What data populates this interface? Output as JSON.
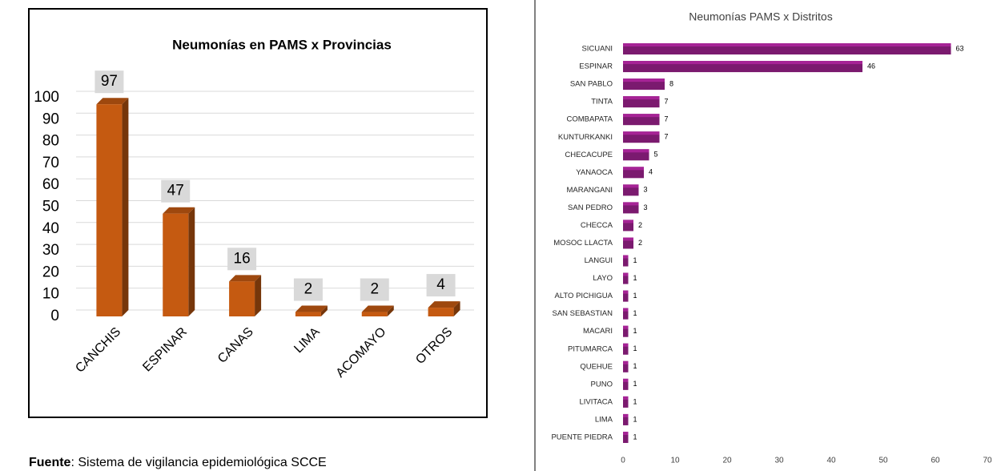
{
  "chart_data": [
    {
      "type": "bar",
      "title": "Neumonías en PAMS x Provincias",
      "categories": [
        "CANCHIS",
        "ESPINAR",
        "CANAS",
        "LIMA",
        "ACOMAYO",
        "OTROS"
      ],
      "values": [
        97,
        47,
        16,
        2,
        2,
        4
      ],
      "color": "#c55a11",
      "ylim": [
        0,
        100
      ],
      "yticks": [
        0,
        10,
        20,
        30,
        40,
        50,
        60,
        70,
        80,
        90,
        100
      ],
      "grid": true
    },
    {
      "type": "bar",
      "orientation": "horizontal",
      "title": "Neumonías PAMS x Distritos",
      "categories": [
        "SICUANI",
        "ESPINAR",
        "SAN PABLO",
        "TINTA",
        "COMBAPATA",
        "KUNTURKANKI",
        "CHECACUPE",
        "YANAOCA",
        "MARANGANI",
        "SAN PEDRO",
        "CHECCA",
        "MOSOC LLACTA",
        "LANGUI",
        "LAYO",
        "ALTO PICHIGUA",
        "SAN SEBASTIAN",
        "MACARI",
        "PITUMARCA",
        "QUEHUE",
        "PUNO",
        "LIVITACA",
        "LIMA",
        "PUENTE PIEDRA"
      ],
      "values": [
        63,
        46,
        8,
        7,
        7,
        7,
        5,
        4,
        3,
        3,
        2,
        2,
        1,
        1,
        1,
        1,
        1,
        1,
        1,
        1,
        1,
        1,
        1
      ],
      "color": "#7b1a6f",
      "xlim": [
        0,
        70
      ],
      "xticks": [
        0,
        10,
        20,
        30,
        40,
        50,
        60,
        70
      ],
      "grid": false
    }
  ],
  "source": {
    "label": "Fuente",
    "text": ": Sistema de vigilancia epidemiológica  SCCE"
  }
}
